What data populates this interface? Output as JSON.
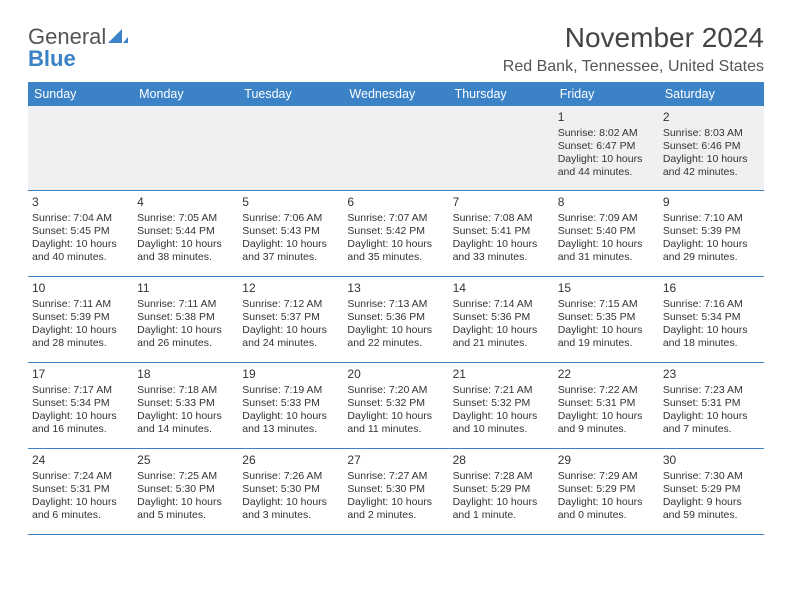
{
  "brand": {
    "line1a": "General",
    "line1b_icon": "◤",
    "line2": "Blue"
  },
  "header": {
    "month_title": "November 2024",
    "location": "Red Bank, Tennessee, United States"
  },
  "colors": {
    "header_blue": "#3b82c7",
    "row_band": "#eef0f2",
    "text": "#333333",
    "white": "#ffffff"
  },
  "columns": [
    "Sunday",
    "Monday",
    "Tuesday",
    "Wednesday",
    "Thursday",
    "Friday",
    "Saturday"
  ],
  "weeks": [
    [
      {
        "day": "",
        "lines": []
      },
      {
        "day": "",
        "lines": []
      },
      {
        "day": "",
        "lines": []
      },
      {
        "day": "",
        "lines": []
      },
      {
        "day": "",
        "lines": []
      },
      {
        "day": "1",
        "lines": [
          "Sunrise: 8:02 AM",
          "Sunset: 6:47 PM",
          "Daylight: 10 hours",
          "and 44 minutes."
        ]
      },
      {
        "day": "2",
        "lines": [
          "Sunrise: 8:03 AM",
          "Sunset: 6:46 PM",
          "Daylight: 10 hours",
          "and 42 minutes."
        ]
      }
    ],
    [
      {
        "day": "3",
        "lines": [
          "Sunrise: 7:04 AM",
          "Sunset: 5:45 PM",
          "Daylight: 10 hours",
          "and 40 minutes."
        ]
      },
      {
        "day": "4",
        "lines": [
          "Sunrise: 7:05 AM",
          "Sunset: 5:44 PM",
          "Daylight: 10 hours",
          "and 38 minutes."
        ]
      },
      {
        "day": "5",
        "lines": [
          "Sunrise: 7:06 AM",
          "Sunset: 5:43 PM",
          "Daylight: 10 hours",
          "and 37 minutes."
        ]
      },
      {
        "day": "6",
        "lines": [
          "Sunrise: 7:07 AM",
          "Sunset: 5:42 PM",
          "Daylight: 10 hours",
          "and 35 minutes."
        ]
      },
      {
        "day": "7",
        "lines": [
          "Sunrise: 7:08 AM",
          "Sunset: 5:41 PM",
          "Daylight: 10 hours",
          "and 33 minutes."
        ]
      },
      {
        "day": "8",
        "lines": [
          "Sunrise: 7:09 AM",
          "Sunset: 5:40 PM",
          "Daylight: 10 hours",
          "and 31 minutes."
        ]
      },
      {
        "day": "9",
        "lines": [
          "Sunrise: 7:10 AM",
          "Sunset: 5:39 PM",
          "Daylight: 10 hours",
          "and 29 minutes."
        ]
      }
    ],
    [
      {
        "day": "10",
        "lines": [
          "Sunrise: 7:11 AM",
          "Sunset: 5:39 PM",
          "Daylight: 10 hours",
          "and 28 minutes."
        ]
      },
      {
        "day": "11",
        "lines": [
          "Sunrise: 7:11 AM",
          "Sunset: 5:38 PM",
          "Daylight: 10 hours",
          "and 26 minutes."
        ]
      },
      {
        "day": "12",
        "lines": [
          "Sunrise: 7:12 AM",
          "Sunset: 5:37 PM",
          "Daylight: 10 hours",
          "and 24 minutes."
        ]
      },
      {
        "day": "13",
        "lines": [
          "Sunrise: 7:13 AM",
          "Sunset: 5:36 PM",
          "Daylight: 10 hours",
          "and 22 minutes."
        ]
      },
      {
        "day": "14",
        "lines": [
          "Sunrise: 7:14 AM",
          "Sunset: 5:36 PM",
          "Daylight: 10 hours",
          "and 21 minutes."
        ]
      },
      {
        "day": "15",
        "lines": [
          "Sunrise: 7:15 AM",
          "Sunset: 5:35 PM",
          "Daylight: 10 hours",
          "and 19 minutes."
        ]
      },
      {
        "day": "16",
        "lines": [
          "Sunrise: 7:16 AM",
          "Sunset: 5:34 PM",
          "Daylight: 10 hours",
          "and 18 minutes."
        ]
      }
    ],
    [
      {
        "day": "17",
        "lines": [
          "Sunrise: 7:17 AM",
          "Sunset: 5:34 PM",
          "Daylight: 10 hours",
          "and 16 minutes."
        ]
      },
      {
        "day": "18",
        "lines": [
          "Sunrise: 7:18 AM",
          "Sunset: 5:33 PM",
          "Daylight: 10 hours",
          "and 14 minutes."
        ]
      },
      {
        "day": "19",
        "lines": [
          "Sunrise: 7:19 AM",
          "Sunset: 5:33 PM",
          "Daylight: 10 hours",
          "and 13 minutes."
        ]
      },
      {
        "day": "20",
        "lines": [
          "Sunrise: 7:20 AM",
          "Sunset: 5:32 PM",
          "Daylight: 10 hours",
          "and 11 minutes."
        ]
      },
      {
        "day": "21",
        "lines": [
          "Sunrise: 7:21 AM",
          "Sunset: 5:32 PM",
          "Daylight: 10 hours",
          "and 10 minutes."
        ]
      },
      {
        "day": "22",
        "lines": [
          "Sunrise: 7:22 AM",
          "Sunset: 5:31 PM",
          "Daylight: 10 hours",
          "and 9 minutes."
        ]
      },
      {
        "day": "23",
        "lines": [
          "Sunrise: 7:23 AM",
          "Sunset: 5:31 PM",
          "Daylight: 10 hours",
          "and 7 minutes."
        ]
      }
    ],
    [
      {
        "day": "24",
        "lines": [
          "Sunrise: 7:24 AM",
          "Sunset: 5:31 PM",
          "Daylight: 10 hours",
          "and 6 minutes."
        ]
      },
      {
        "day": "25",
        "lines": [
          "Sunrise: 7:25 AM",
          "Sunset: 5:30 PM",
          "Daylight: 10 hours",
          "and 5 minutes."
        ]
      },
      {
        "day": "26",
        "lines": [
          "Sunrise: 7:26 AM",
          "Sunset: 5:30 PM",
          "Daylight: 10 hours",
          "and 3 minutes."
        ]
      },
      {
        "day": "27",
        "lines": [
          "Sunrise: 7:27 AM",
          "Sunset: 5:30 PM",
          "Daylight: 10 hours",
          "and 2 minutes."
        ]
      },
      {
        "day": "28",
        "lines": [
          "Sunrise: 7:28 AM",
          "Sunset: 5:29 PM",
          "Daylight: 10 hours",
          "and 1 minute."
        ]
      },
      {
        "day": "29",
        "lines": [
          "Sunrise: 7:29 AM",
          "Sunset: 5:29 PM",
          "Daylight: 10 hours",
          "and 0 minutes."
        ]
      },
      {
        "day": "30",
        "lines": [
          "Sunrise: 7:30 AM",
          "Sunset: 5:29 PM",
          "Daylight: 9 hours",
          "and 59 minutes."
        ]
      }
    ]
  ]
}
